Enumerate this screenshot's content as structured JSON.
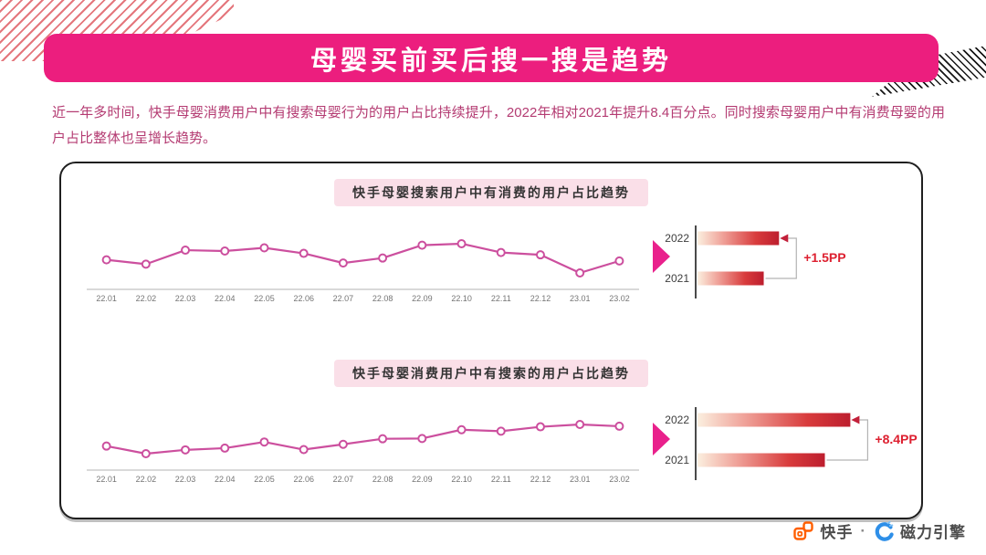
{
  "header": {
    "title": "母婴买前买后搜一搜是趋势"
  },
  "intro_text": "近一年多时间，快手母婴消费用户中有搜索母婴行为的用户占比持续提升，2022年相对2021年提升8.4百分点。同时搜索母婴用户中有消费母婴的用户占比整体也呈增长趋势。",
  "colors": {
    "banner_bg": "#ec1e7e",
    "line_stroke": "#cc4f9e",
    "marker_fill": "#ffffff",
    "axis_gray": "#d9d9d9",
    "mini_axis": "#4a4a4a",
    "bracket_gray": "#b3b3b3",
    "delta_text": "#dd2030",
    "arrow_head": "#c2203a",
    "bar_gradient": [
      "#fbefdf",
      "#f0a49b",
      "#d83b3c",
      "#bd1e2e"
    ],
    "pill_bg": "#fadfe8",
    "intro_text": "#b43b72",
    "triangle_magenta": "#e9218c",
    "kuaishou_orange": "#ff5f00",
    "engine_blue": "#2e8fe8"
  },
  "footer": {
    "kuaishou_label": "快手",
    "separator": "·",
    "engine_label": "磁力引擎"
  },
  "chart_data": [
    {
      "type": "line",
      "title": "快手母婴搜索用户中有消费的用户占比趋势",
      "x": [
        "22.01",
        "22.02",
        "22.03",
        "22.04",
        "22.05",
        "22.06",
        "22.07",
        "22.08",
        "22.09",
        "22.10",
        "22.11",
        "22.12",
        "23.01",
        "23.02"
      ],
      "values_relative": [
        45,
        30,
        78,
        75,
        86,
        67,
        34,
        51,
        95,
        100,
        70,
        62,
        0,
        41
      ],
      "note": "no y-axis labels shown in source; values are relative 0-100 estimates of point heights",
      "grid": false,
      "comparison": {
        "type": "bar",
        "categories": [
          "2022",
          "2021"
        ],
        "values_relative": [
          48,
          39
        ],
        "delta_label": "+1.5PP"
      }
    },
    {
      "type": "line",
      "title": "快手母婴消费用户中有搜索的用户占比趋势",
      "x": [
        "22.01",
        "22.02",
        "22.03",
        "22.04",
        "22.05",
        "22.06",
        "22.07",
        "22.08",
        "22.09",
        "22.10",
        "22.11",
        "22.12",
        "23.01",
        "23.02"
      ],
      "values_relative": [
        26,
        0,
        13,
        19,
        40,
        14,
        32,
        51,
        52,
        82,
        77,
        92,
        100,
        94
      ],
      "note": "no y-axis labels shown in source; values are relative 0-100 estimates of point heights",
      "grid": false,
      "comparison": {
        "type": "bar",
        "categories": [
          "2022",
          "2021"
        ],
        "values_relative": [
          90,
          75
        ],
        "delta_label": "+8.4PP"
      }
    }
  ]
}
